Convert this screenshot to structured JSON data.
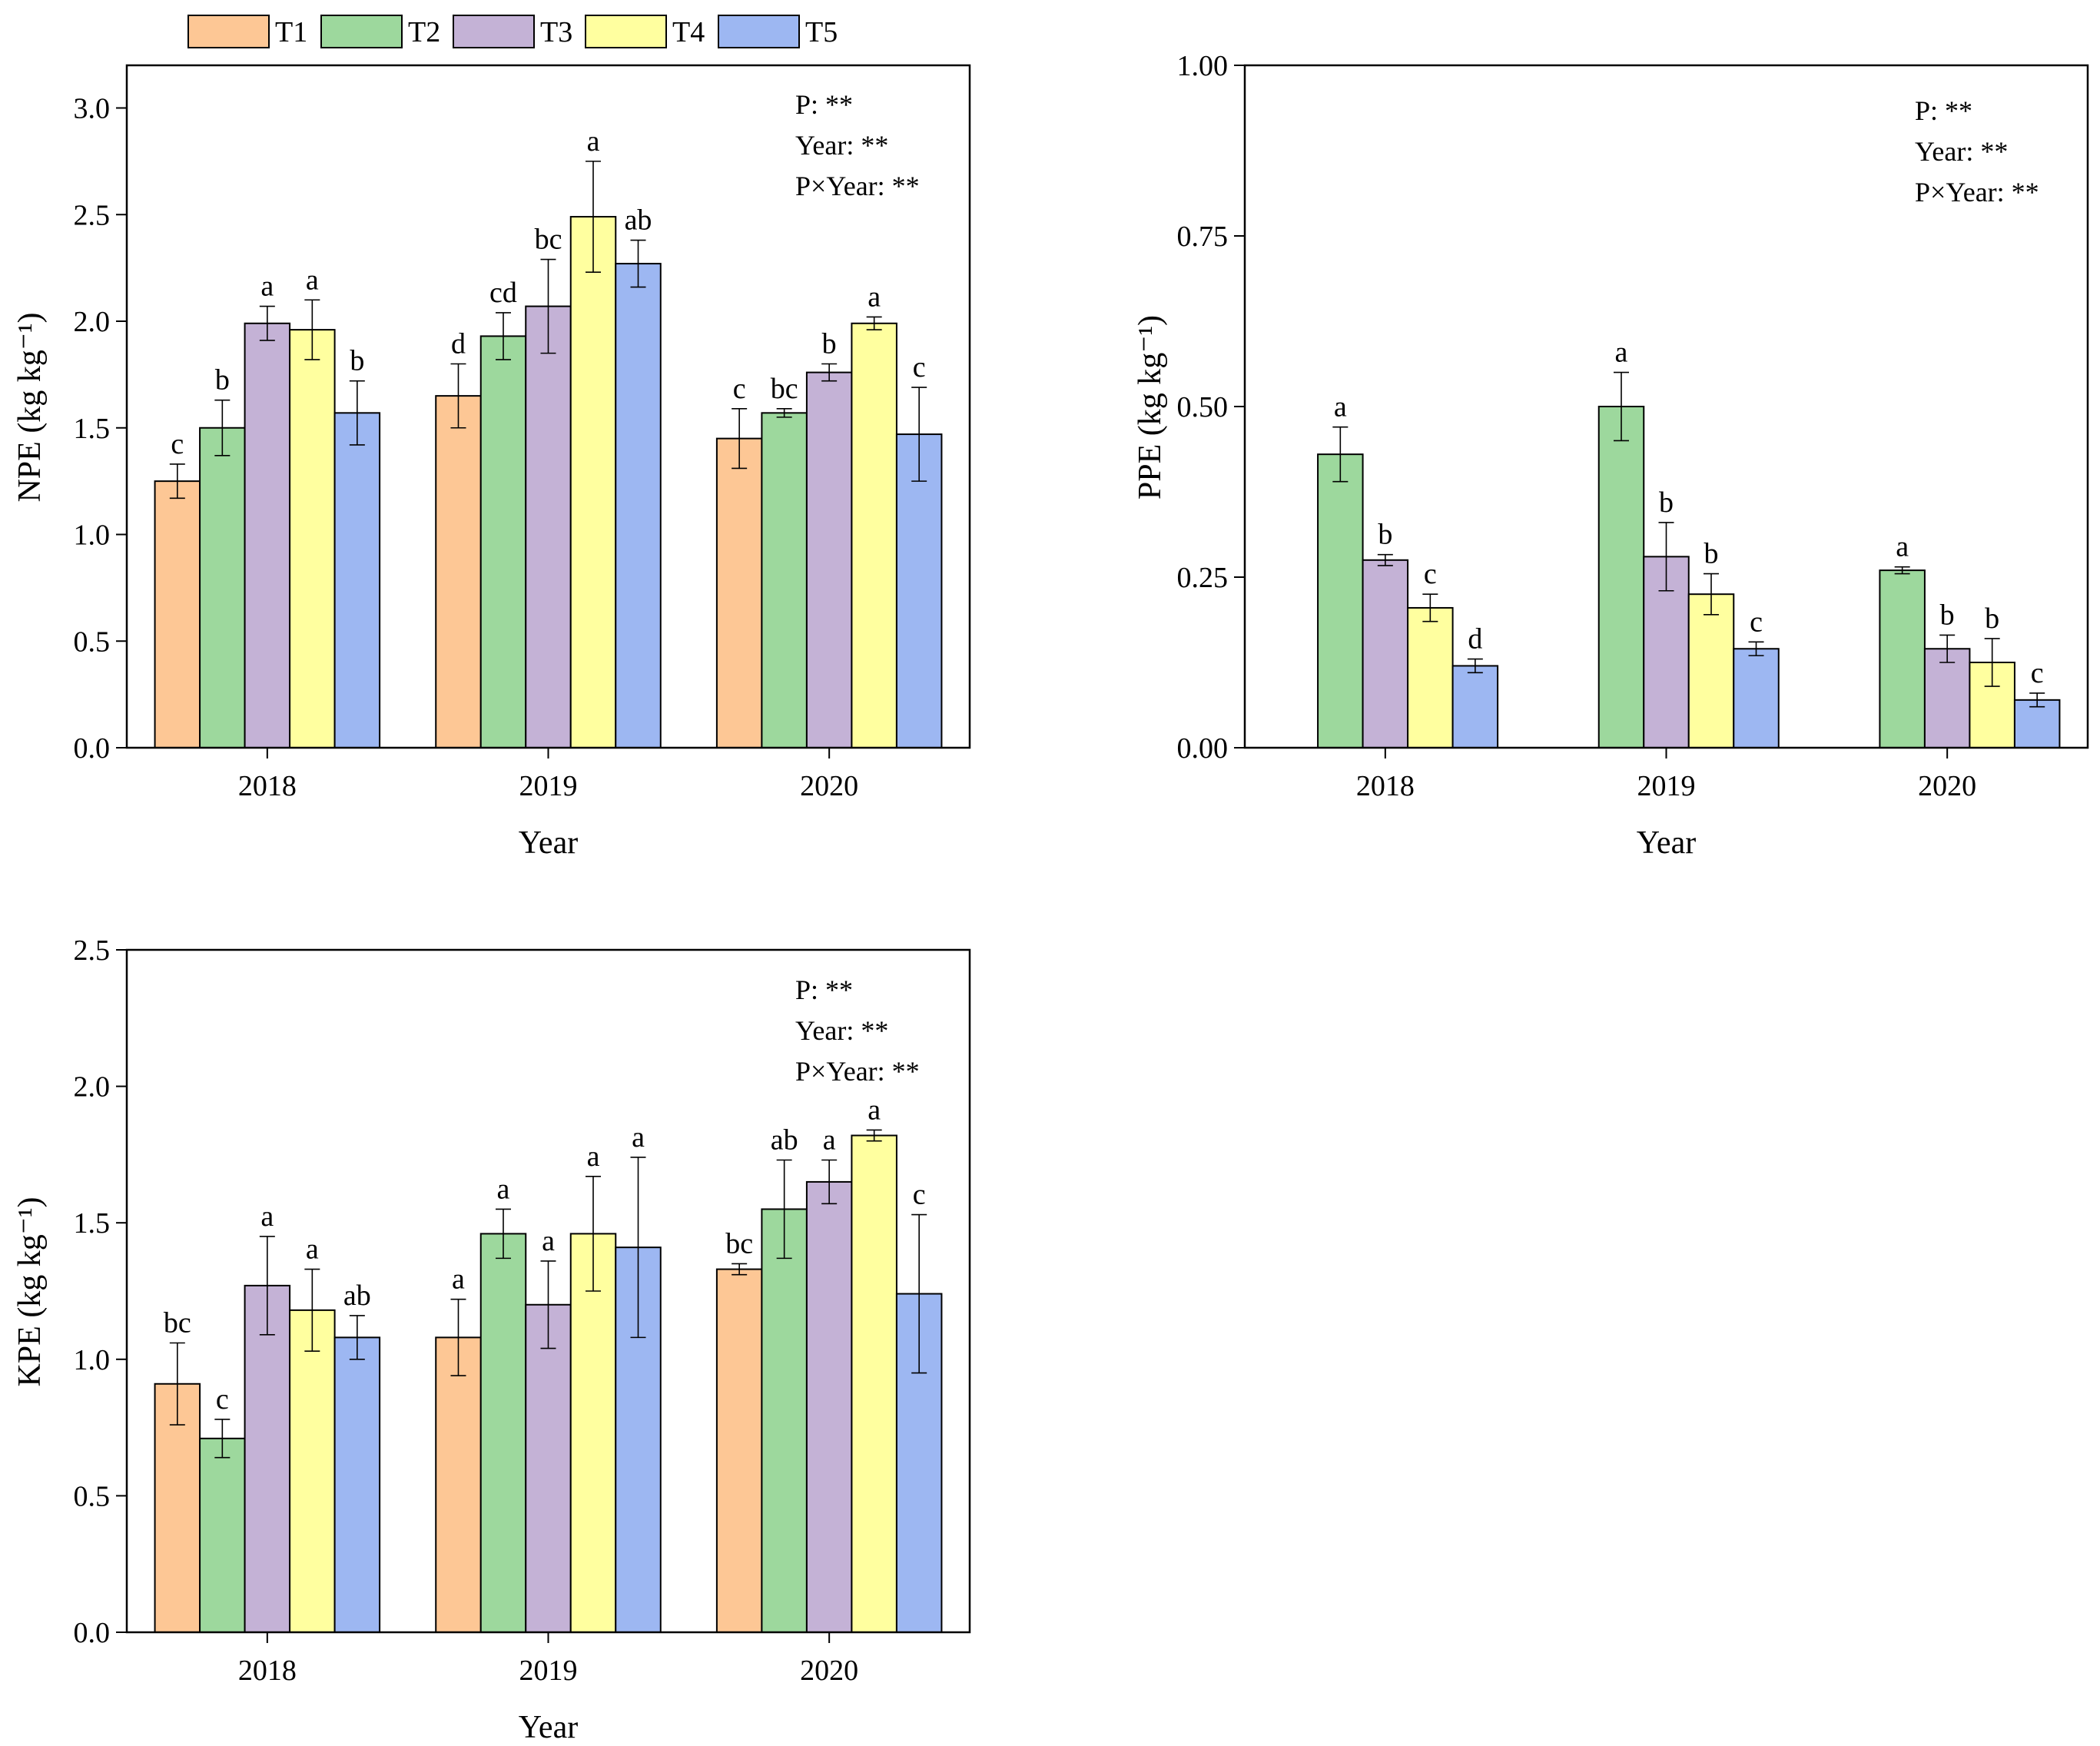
{
  "legend": {
    "entries": [
      {
        "label": "T1",
        "color": "#fdc795"
      },
      {
        "label": "T2",
        "color": "#9dd89d"
      },
      {
        "label": "T3",
        "color": "#c4b2d6"
      },
      {
        "label": "T4",
        "color": "#ffff9f"
      },
      {
        "label": "T5",
        "color": "#9db7f2"
      }
    ]
  },
  "chart_data": [
    {
      "id": "npe",
      "type": "bar",
      "title": "",
      "xlabel": "Year",
      "ylabel": "NPE (kg kg⁻¹)",
      "ylim": [
        0,
        3.2
      ],
      "yticks": [
        "0.0",
        "0.5",
        "1.0",
        "1.5",
        "2.0",
        "2.5",
        "3.0"
      ],
      "categories": [
        "2018",
        "2019",
        "2020"
      ],
      "stats": [
        "P: **",
        "Year: **",
        "P×Year: **"
      ],
      "series": [
        {
          "name": "T1",
          "values": [
            1.25,
            1.65,
            1.45
          ],
          "errors": [
            0.08,
            0.15,
            0.14
          ],
          "sig": [
            "c",
            "d",
            "c"
          ]
        },
        {
          "name": "T2",
          "values": [
            1.5,
            1.93,
            1.57
          ],
          "errors": [
            0.13,
            0.11,
            0.02
          ],
          "sig": [
            "b",
            "cd",
            "bc"
          ]
        },
        {
          "name": "T3",
          "values": [
            1.99,
            2.07,
            1.76
          ],
          "errors": [
            0.08,
            0.22,
            0.04
          ],
          "sig": [
            "a",
            "bc",
            "b"
          ]
        },
        {
          "name": "T4",
          "values": [
            1.96,
            2.49,
            1.99
          ],
          "errors": [
            0.14,
            0.26,
            0.03
          ],
          "sig": [
            "a",
            "a",
            "a"
          ]
        },
        {
          "name": "T5",
          "values": [
            1.57,
            2.27,
            1.47
          ],
          "errors": [
            0.15,
            0.11,
            0.22
          ],
          "sig": [
            "b",
            "ab",
            "c"
          ]
        }
      ]
    },
    {
      "id": "ppe",
      "type": "bar",
      "title": "",
      "xlabel": "Year",
      "ylabel": "PPE (kg kg⁻¹)",
      "ylim": [
        0,
        1.0
      ],
      "yticks": [
        "0.00",
        "0.25",
        "0.50",
        "0.75",
        "1.00"
      ],
      "categories": [
        "2018",
        "2019",
        "2020"
      ],
      "stats": [
        "P: **",
        "Year: **",
        "P×Year: **"
      ],
      "series": [
        {
          "name": "T1",
          "values": [
            null,
            null,
            null
          ],
          "errors": [
            null,
            null,
            null
          ],
          "sig": [
            "",
            "",
            ""
          ]
        },
        {
          "name": "T2",
          "values": [
            0.43,
            0.5,
            0.26
          ],
          "errors": [
            0.04,
            0.05,
            0.005
          ],
          "sig": [
            "a",
            "a",
            "a"
          ]
        },
        {
          "name": "T3",
          "values": [
            0.275,
            0.28,
            0.145
          ],
          "errors": [
            0.008,
            0.05,
            0.02
          ],
          "sig": [
            "b",
            "b",
            "b"
          ]
        },
        {
          "name": "T4",
          "values": [
            0.205,
            0.225,
            0.125
          ],
          "errors": [
            0.02,
            0.03,
            0.035
          ],
          "sig": [
            "c",
            "b",
            "b"
          ]
        },
        {
          "name": "T5",
          "values": [
            0.12,
            0.145,
            0.07
          ],
          "errors": [
            0.01,
            0.01,
            0.01
          ],
          "sig": [
            "d",
            "c",
            "c"
          ]
        }
      ]
    },
    {
      "id": "kpe",
      "type": "bar",
      "title": "",
      "xlabel": "Year",
      "ylabel": "KPE (kg kg⁻¹)",
      "ylim": [
        0,
        2.5
      ],
      "yticks": [
        "0.0",
        "0.5",
        "1.0",
        "1.5",
        "2.0",
        "2.5"
      ],
      "categories": [
        "2018",
        "2019",
        "2020"
      ],
      "stats": [
        "P: **",
        "Year: **",
        "P×Year: **"
      ],
      "series": [
        {
          "name": "T1",
          "values": [
            0.91,
            1.08,
            1.33
          ],
          "errors": [
            0.15,
            0.14,
            0.02
          ],
          "sig": [
            "bc",
            "a",
            "bc"
          ]
        },
        {
          "name": "T2",
          "values": [
            0.71,
            1.46,
            1.55
          ],
          "errors": [
            0.07,
            0.09,
            0.18
          ],
          "sig": [
            "c",
            "a",
            "ab"
          ]
        },
        {
          "name": "T3",
          "values": [
            1.27,
            1.2,
            1.65
          ],
          "errors": [
            0.18,
            0.16,
            0.08
          ],
          "sig": [
            "a",
            "a",
            "a"
          ]
        },
        {
          "name": "T4",
          "values": [
            1.18,
            1.46,
            1.82
          ],
          "errors": [
            0.15,
            0.21,
            0.02
          ],
          "sig": [
            "a",
            "a",
            "a"
          ]
        },
        {
          "name": "T5",
          "values": [
            1.08,
            1.41,
            1.24
          ],
          "errors": [
            0.08,
            0.33,
            0.29
          ],
          "sig": [
            "ab",
            "a",
            "c"
          ]
        }
      ]
    }
  ]
}
